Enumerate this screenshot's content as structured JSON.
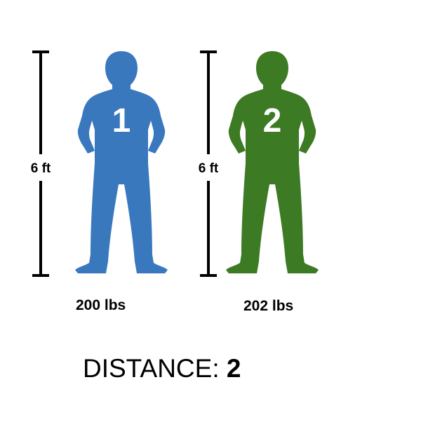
{
  "colors": {
    "figure_1": "#3a78be",
    "figure_2": "#3c7a23",
    "ruler": "#000000"
  },
  "icons": [
    "person-silhouette-icon",
    "height-ruler-icon"
  ],
  "figures": [
    {
      "number": "1",
      "height": "6 ft",
      "weight": "200 lbs"
    },
    {
      "number": "2",
      "height": "6 ft",
      "weight": "202 lbs"
    }
  ],
  "distance": {
    "label": "DISTANCE:",
    "value": "2"
  }
}
